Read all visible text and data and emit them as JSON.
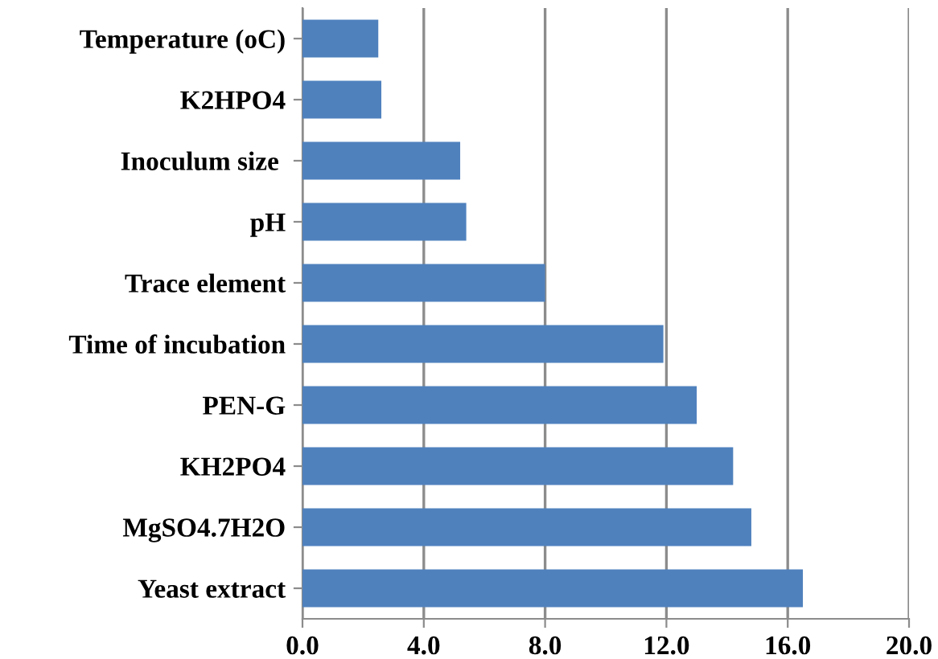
{
  "chart_data": {
    "type": "bar",
    "orientation": "horizontal",
    "categories": [
      "Temperature (oC)",
      "K2HPO4",
      "Inoculum size ",
      "pH",
      "Trace element",
      "Time of incubation",
      "PEN-G",
      "KH2PO4",
      "MgSO4.7H2O",
      "Yeast extract"
    ],
    "values": [
      2.5,
      2.6,
      5.2,
      5.4,
      8.0,
      11.9,
      13.0,
      14.2,
      14.8,
      16.5
    ],
    "color": "#4f81bd",
    "xlim": [
      0,
      20
    ],
    "xticks": [
      {
        "value": 0,
        "label": "0.0"
      },
      {
        "value": 4,
        "label": "4.0"
      },
      {
        "value": 8,
        "label": "8.0"
      },
      {
        "value": 12,
        "label": "12.0"
      },
      {
        "value": 16,
        "label": "16.0"
      },
      {
        "value": 20,
        "label": "20.0"
      }
    ],
    "grid": "x"
  }
}
